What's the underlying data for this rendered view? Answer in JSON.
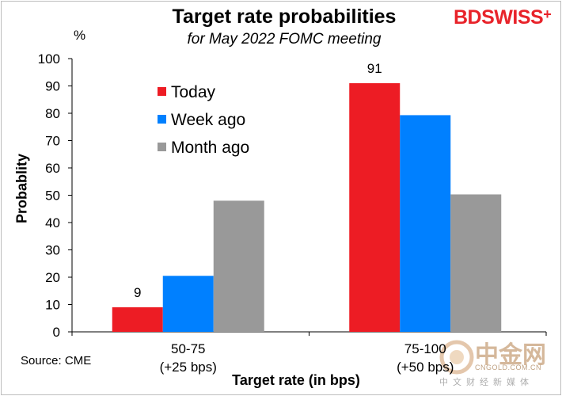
{
  "header": {
    "title": "Target rate probabilities",
    "subtitle": "for May 2022 FOMC meeting",
    "unit": "%"
  },
  "logo": {
    "text_bd": "BD",
    "text_swiss": "SWISS",
    "text_plus": "+",
    "color": "#e8232a"
  },
  "footer": {
    "source": "Source: CME"
  },
  "watermark": {
    "main": "中金网",
    "domain": "CNGOLD.COM.CN",
    "sub": "中文财经新媒体"
  },
  "chart_data": {
    "type": "bar",
    "title": "Target rate probabilities",
    "subtitle": "for May 2022 FOMC meeting",
    "xlabel": "Target rate (in bps)",
    "ylabel": "Probablity",
    "ylim": [
      0,
      100
    ],
    "yticks": [
      0,
      10,
      20,
      30,
      40,
      50,
      60,
      70,
      80,
      90,
      100
    ],
    "categories": [
      [
        "50-75",
        "(+25 bps)"
      ],
      [
        "75-100",
        "(+50 bps)"
      ]
    ],
    "series": [
      {
        "name": "Today",
        "color": "#ed1c24",
        "values": [
          9,
          91
        ],
        "labels": [
          "9",
          "91"
        ]
      },
      {
        "name": "Week ago",
        "color": "#0080ff",
        "values": [
          20.5,
          79.3
        ]
      },
      {
        "name": "Month ago",
        "color": "#999999",
        "values": [
          48,
          50.3
        ]
      }
    ],
    "legend_position": "top-left",
    "grid": false
  }
}
